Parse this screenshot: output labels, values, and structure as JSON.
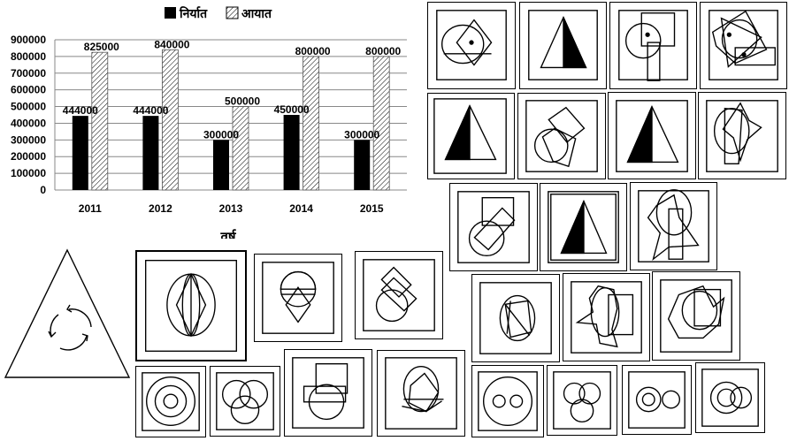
{
  "chart_data": {
    "type": "bar",
    "categories": [
      "2011",
      "2012",
      "2013",
      "2014",
      "2015"
    ],
    "series": [
      {
        "name": "निर्यात",
        "values": [
          444000,
          444000,
          300000,
          450000,
          300000
        ],
        "color": "#000000",
        "pattern": "solid"
      },
      {
        "name": "आयात",
        "values": [
          825000,
          840000,
          500000,
          800000,
          800000
        ],
        "color": "#ffffff",
        "pattern": "hatch"
      }
    ],
    "data_labels": {
      "export": [
        "444000",
        "444000",
        "300000",
        "450000",
        "300000"
      ],
      "import": [
        "825000",
        "840000",
        "500000",
        "800000",
        "800000"
      ]
    },
    "yticks": [
      "900000",
      "800000",
      "700000",
      "600000",
      "500000",
      "400000",
      "300000",
      "200000",
      "100000",
      "0"
    ],
    "ylim": [
      0,
      900000
    ],
    "xlabel": "वर्ष",
    "ylabel": "",
    "title": "",
    "grid": true,
    "legend_position": "top"
  },
  "figures": {
    "puzzle_triangle": "triangle with circular arrows",
    "tiles": [
      "circle-diamond-overlap",
      "half-filled-triangle",
      "circle-squares",
      "star-polygon",
      "half-filled-triangle-square",
      "rotated-squares-circle",
      "half-filled-triangle-2",
      "oval-pennant",
      "circle-squares-rotated",
      "half-filled-triangle-3",
      "star-oval",
      "oval-diamond-arcs",
      "semicircle-diamond",
      "stacked-squares-circle",
      "oval-rectangle",
      "star-oval-2",
      "star-oval-3",
      "concentric-circles",
      "three-rings",
      "square-circle-overlap",
      "oval-diamond-fan",
      "circle-two-dots",
      "three-circles",
      "ring-and-circle",
      "circle-pair"
    ]
  }
}
